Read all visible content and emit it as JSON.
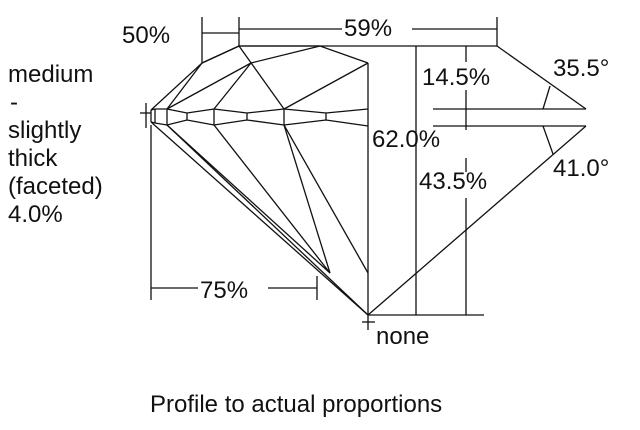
{
  "labels": {
    "crown_height_ratio": "50%",
    "table": "59%",
    "girdle_line1": "medium",
    "girdle_line2": "-",
    "girdle_line3": "slightly",
    "girdle_line4": "thick",
    "girdle_line5": "(faceted)",
    "girdle_line6": "4.0%",
    "crown_height": "14.5%",
    "crown_angle": "35.5°",
    "total_depth": "62.0%",
    "pavilion_depth": "43.5%",
    "pavilion_angle": "41.0°",
    "lower_half": "75%",
    "culet": "none"
  },
  "caption": "Profile to actual proportions"
}
